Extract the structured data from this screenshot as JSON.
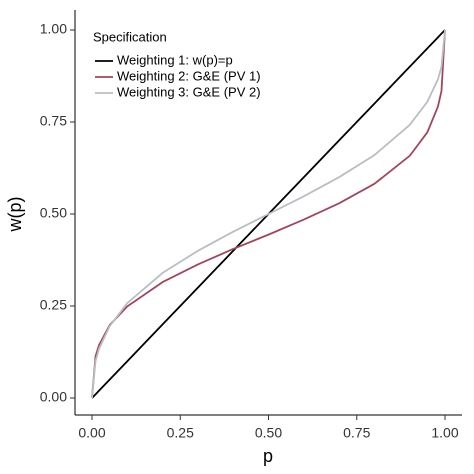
{
  "chart_data": {
    "type": "line",
    "xlabel": "p",
    "ylabel": "w(p)",
    "legend_title": "Specification",
    "legend_position": "top-left",
    "grid": false,
    "x": [
      0,
      0.01,
      0.02,
      0.05,
      0.1,
      0.2,
      0.3,
      0.4,
      0.5,
      0.6,
      0.7,
      0.8,
      0.9,
      0.95,
      0.98,
      0.99,
      1
    ],
    "series": [
      {
        "name": "Weighting 1: w(p)=p",
        "color": "#000000",
        "values": [
          0,
          0.01,
          0.02,
          0.05,
          0.1,
          0.2,
          0.3,
          0.4,
          0.5,
          0.6,
          0.7,
          0.8,
          0.9,
          0.95,
          0.98,
          0.99,
          1
        ]
      },
      {
        "name": "Weighting 2: G&E (PV 1)",
        "color": "#a0475c",
        "values": [
          0,
          0.113,
          0.144,
          0.198,
          0.249,
          0.315,
          0.363,
          0.405,
          0.444,
          0.485,
          0.529,
          0.582,
          0.658,
          0.722,
          0.792,
          0.834,
          1
        ]
      },
      {
        "name": "Weighting 3: G&E (PV 2)",
        "color": "#b9bec4",
        "values": [
          0,
          0.1,
          0.134,
          0.195,
          0.258,
          0.34,
          0.4,
          0.452,
          0.5,
          0.548,
          0.6,
          0.66,
          0.742,
          0.805,
          0.866,
          0.9,
          1
        ]
      }
    ],
    "xlim": [
      0,
      1
    ],
    "ylim": [
      0,
      1
    ],
    "xticks": [
      {
        "value": 0,
        "label": "0.00"
      },
      {
        "value": 0.25,
        "label": "0.25"
      },
      {
        "value": 0.5,
        "label": "0.50"
      },
      {
        "value": 0.75,
        "label": "0.75"
      },
      {
        "value": 1,
        "label": "1.00"
      }
    ],
    "yticks": [
      {
        "value": 0,
        "label": "0.00"
      },
      {
        "value": 0.25,
        "label": "0.25"
      },
      {
        "value": 0.5,
        "label": "0.50"
      },
      {
        "value": 0.75,
        "label": "0.75"
      },
      {
        "value": 1,
        "label": "1.00"
      }
    ]
  }
}
